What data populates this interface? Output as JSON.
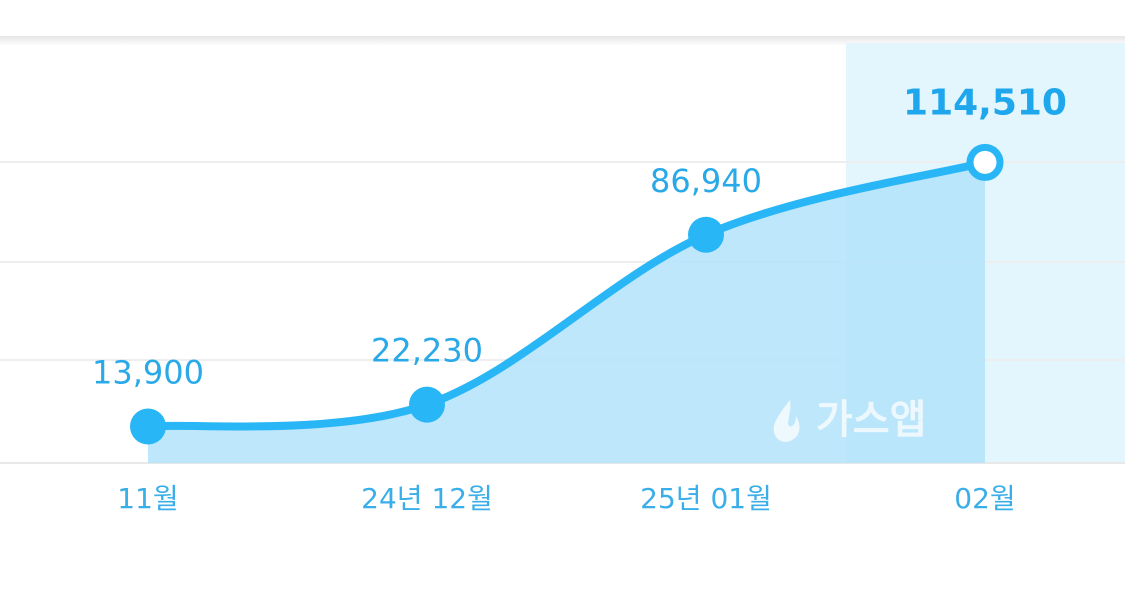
{
  "chart_data": {
    "type": "area",
    "categories": [
      "11월",
      "24년 12월",
      "25년 01월",
      "02월"
    ],
    "values": [
      13900,
      22230,
      86940,
      114510
    ],
    "value_labels": [
      "13,900",
      "22,230",
      "86,940",
      "114,510"
    ],
    "color": "#29b6f6",
    "ylim": [
      0,
      160000
    ],
    "watermark": "가스앱"
  }
}
